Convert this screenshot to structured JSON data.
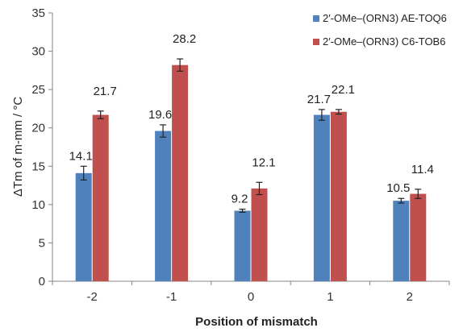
{
  "chart_data": {
    "type": "bar",
    "categories": [
      "-2",
      "-1",
      "0",
      "1",
      "2"
    ],
    "series": [
      {
        "name": "2′-OMe–(ORN3) AE-TOQ6",
        "color": "#4f81bd",
        "values": [
          14.1,
          19.6,
          9.2,
          21.7,
          10.5
        ],
        "errors": [
          0.9,
          0.8,
          0.2,
          0.7,
          0.3
        ],
        "labels": [
          "14.1",
          "19.6",
          "9.2",
          "21.7",
          "10.5"
        ]
      },
      {
        "name": "2′-OMe–(ORN3) C6-TOB6",
        "color": "#c0504d",
        "values": [
          21.7,
          28.2,
          12.1,
          22.1,
          11.4
        ],
        "errors": [
          0.5,
          0.8,
          0.8,
          0.3,
          0.6
        ],
        "labels": [
          "21.7",
          "28.2",
          "12.1",
          "22.1",
          "11.4"
        ]
      }
    ],
    "xlabel": "Position of mismatch",
    "ylabel": "ΔTm of m-mm / °C",
    "ylim": [
      0,
      35
    ],
    "yticks": [
      "0",
      "5",
      "10",
      "15",
      "20",
      "25",
      "30",
      "35"
    ],
    "grid": false,
    "legend_position": "top-right"
  }
}
